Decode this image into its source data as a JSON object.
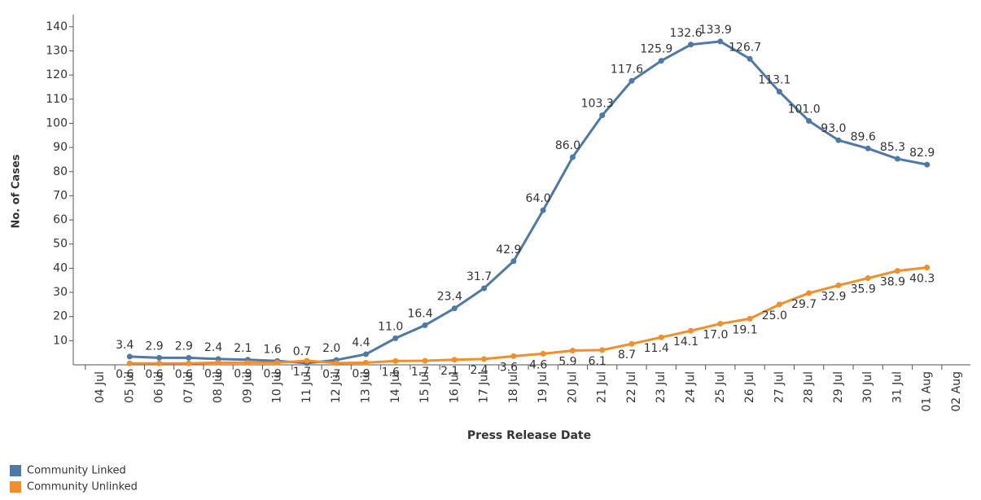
{
  "chart_data": {
    "type": "line",
    "x_label": "Press Release Date",
    "y_label": "No. of Cases",
    "categories": [
      "04 Jul",
      "05 Jul",
      "06 Jul",
      "07 Jul",
      "08 Jul",
      "09 Jul",
      "10 Jul",
      "11 Jul",
      "12 Jul",
      "13 Jul",
      "14 Jul",
      "15 Jul",
      "16 Jul",
      "17 Jul",
      "18 Jul",
      "19 Jul",
      "20 Jul",
      "21 Jul",
      "22 Jul",
      "23 Jul",
      "24 Jul",
      "25 Jul",
      "26 Jul",
      "27 Jul",
      "28 Jul",
      "29 Jul",
      "30 Jul",
      "31 Jul",
      "01 Aug",
      "02 Aug"
    ],
    "series": [
      {
        "name": "Community Linked",
        "color": "#4e79a7",
        "values": [
          null,
          3.4,
          2.9,
          2.9,
          2.4,
          2.1,
          1.6,
          0.7,
          2.0,
          4.4,
          11.0,
          16.4,
          23.4,
          31.7,
          42.9,
          64.0,
          86.0,
          103.3,
          117.6,
          125.9,
          132.6,
          133.9,
          126.7,
          113.1,
          101.0,
          93.0,
          89.6,
          85.3,
          82.9,
          null
        ],
        "value_labels": [
          null,
          "3.4",
          "2.9",
          "2.9",
          "2.4",
          "2.1",
          "1.6",
          "0.7",
          "2.0",
          "4.4",
          "11.0",
          "16.4",
          "23.4",
          "31.7",
          "42.9",
          "64.0",
          "86.0",
          "103.3",
          "117.6",
          "125.9",
          "132.6",
          "133.9",
          "126.7",
          "113.1",
          "101.0",
          "93.0",
          "89.6",
          "85.3",
          "82.9",
          null
        ]
      },
      {
        "name": "Community Unlinked",
        "color": "#f28e2b",
        "values": [
          null,
          0.6,
          0.6,
          0.6,
          0.9,
          0.9,
          0.9,
          1.7,
          0.7,
          0.9,
          1.6,
          1.7,
          2.1,
          2.4,
          3.6,
          4.6,
          5.9,
          6.1,
          8.7,
          11.4,
          14.1,
          17.0,
          19.1,
          25.0,
          29.7,
          32.9,
          35.9,
          38.9,
          40.3,
          null
        ],
        "value_labels": [
          null,
          "0.6",
          "0.6",
          "0.6",
          "0.9",
          "0.9",
          "0.9",
          "1.7",
          "0.7",
          "0.9",
          "1.6",
          "1.7",
          "2.1",
          "2.4",
          "3.6",
          "4.6",
          "5.9",
          "6.1",
          "8.7",
          "11.4",
          "14.1",
          "17.0",
          "19.1",
          "25.0",
          "29.7",
          "32.9",
          "35.9",
          "38.9",
          "40.3",
          null
        ]
      }
    ],
    "ylim": [
      0,
      145
    ],
    "yticks": [
      10,
      20,
      30,
      40,
      50,
      60,
      70,
      80,
      90,
      100,
      110,
      120,
      130,
      140
    ],
    "grid": false
  }
}
